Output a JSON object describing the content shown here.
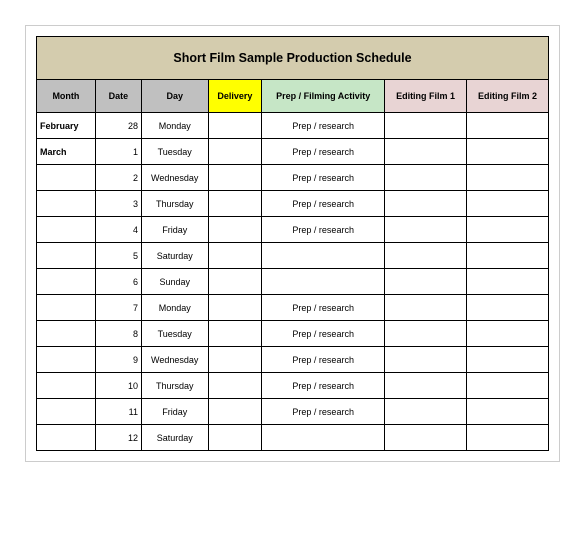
{
  "title": "Short Film Sample Production Schedule",
  "header_colors": {
    "month": "#c0c0c0",
    "date": "#c0c0c0",
    "day": "#c0c0c0",
    "delivery": "#ffff00",
    "prep": "#c6e6c6",
    "editing1": "#e8d4d4",
    "editing2": "#e8d4d4",
    "title_bg": "#d4ccae"
  },
  "columns": {
    "month": "Month",
    "date": "Date",
    "day": "Day",
    "delivery": "Delivery",
    "prep": "Prep / Filming Activity",
    "editing1": "Editing Film 1",
    "editing2": "Editing Film 2"
  },
  "rows": [
    {
      "month": "February",
      "date": "28",
      "day": "Monday",
      "delivery": "",
      "prep": "Prep / research",
      "e1": "",
      "e2": ""
    },
    {
      "month": "March",
      "date": "1",
      "day": "Tuesday",
      "delivery": "",
      "prep": "Prep / research",
      "e1": "",
      "e2": ""
    },
    {
      "month": "",
      "date": "2",
      "day": "Wednesday",
      "delivery": "",
      "prep": "Prep / research",
      "e1": "",
      "e2": ""
    },
    {
      "month": "",
      "date": "3",
      "day": "Thursday",
      "delivery": "",
      "prep": "Prep / research",
      "e1": "",
      "e2": ""
    },
    {
      "month": "",
      "date": "4",
      "day": "Friday",
      "delivery": "",
      "prep": "Prep / research",
      "e1": "",
      "e2": ""
    },
    {
      "month": "",
      "date": "5",
      "day": "Saturday",
      "delivery": "",
      "prep": "",
      "e1": "",
      "e2": ""
    },
    {
      "month": "",
      "date": "6",
      "day": "Sunday",
      "delivery": "",
      "prep": "",
      "e1": "",
      "e2": ""
    },
    {
      "month": "",
      "date": "7",
      "day": "Monday",
      "delivery": "",
      "prep": "Prep / research",
      "e1": "",
      "e2": ""
    },
    {
      "month": "",
      "date": "8",
      "day": "Tuesday",
      "delivery": "",
      "prep": "Prep / research",
      "e1": "",
      "e2": ""
    },
    {
      "month": "",
      "date": "9",
      "day": "Wednesday",
      "delivery": "",
      "prep": "Prep / research",
      "e1": "",
      "e2": ""
    },
    {
      "month": "",
      "date": "10",
      "day": "Thursday",
      "delivery": "",
      "prep": "Prep / research",
      "e1": "",
      "e2": ""
    },
    {
      "month": "",
      "date": "11",
      "day": "Friday",
      "delivery": "",
      "prep": "Prep / research",
      "e1": "",
      "e2": ""
    },
    {
      "month": "",
      "date": "12",
      "day": "Saturday",
      "delivery": "",
      "prep": "",
      "e1": "",
      "e2": ""
    }
  ]
}
